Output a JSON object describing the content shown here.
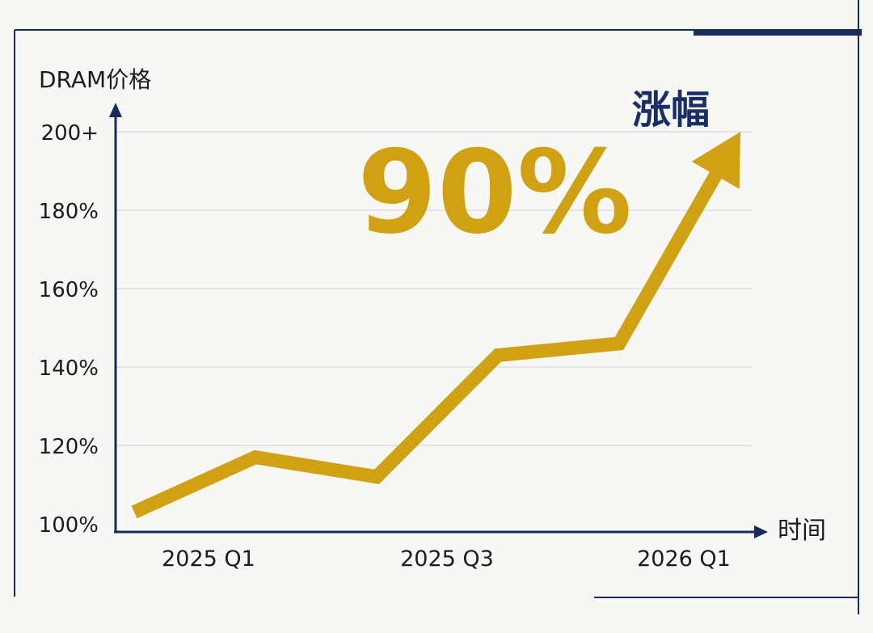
{
  "chart_data": {
    "type": "line",
    "ylabel": "DRAM价格",
    "xlabel": "时间",
    "y_tick_labels": [
      "100%",
      "120%",
      "140%",
      "160%",
      "180%",
      "200+"
    ],
    "ylim": [
      100,
      200
    ],
    "x_tick_labels": [
      "2025 Q1",
      "2025 Q3",
      "2026 Q1"
    ],
    "series": [
      {
        "x": [
          0,
          1,
          2,
          3,
          4,
          5
        ],
        "values": [
          103,
          117,
          112,
          143,
          146,
          200
        ]
      }
    ],
    "annotation": {
      "value": "90%",
      "label": "涨幅"
    },
    "colors": {
      "line": "#d1a114",
      "axis": "#1a2a5a",
      "grid": "#d9d9d9",
      "label_text": "#1c1c1c",
      "annotation_label": "#1a2e66"
    },
    "grid": true
  }
}
